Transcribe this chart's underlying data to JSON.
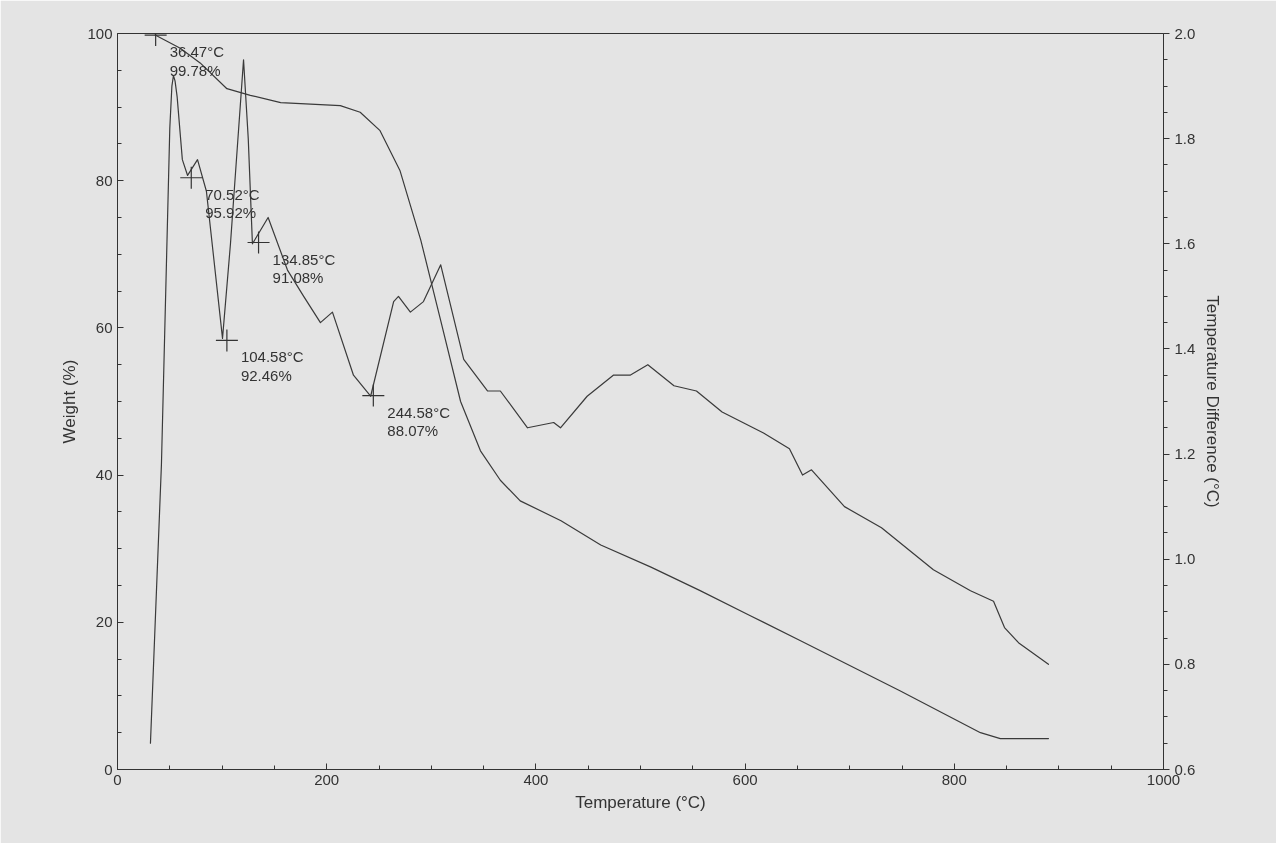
{
  "chart_data": {
    "type": "line",
    "xlabel": "Temperature (°C)",
    "ylabel": "Weight (%)",
    "y2label": "Temperature Difference (°C)",
    "xlim": [
      0,
      1000
    ],
    "xticks": [
      0,
      {
        "value": 50,
        "label": null
      },
      {
        "value": 100,
        "label": null
      },
      {
        "value": 150,
        "label": null
      },
      200,
      {
        "value": 250,
        "label": null
      },
      {
        "value": 300,
        "label": null
      },
      {
        "value": 350,
        "label": null
      },
      400,
      {
        "value": 450,
        "label": null
      },
      {
        "value": 500,
        "label": null
      },
      {
        "value": 550,
        "label": null
      },
      600,
      {
        "value": 650,
        "label": null
      },
      {
        "value": 700,
        "label": null
      },
      {
        "value": 750,
        "label": null
      },
      800,
      {
        "value": 850,
        "label": null
      },
      {
        "value": 900,
        "label": null
      },
      {
        "value": 950,
        "label": null
      },
      1000
    ],
    "ylim": [
      0,
      100
    ],
    "yticks": [
      0,
      {
        "value": 5,
        "label": null
      },
      {
        "value": 10,
        "label": null
      },
      {
        "value": 15,
        "label": null
      },
      20,
      {
        "value": 25,
        "label": null
      },
      {
        "value": 30,
        "label": null
      },
      {
        "value": 35,
        "label": null
      },
      40,
      {
        "value": 45,
        "label": null
      },
      {
        "value": 50,
        "label": null
      },
      {
        "value": 55,
        "label": null
      },
      60,
      {
        "value": 65,
        "label": null
      },
      {
        "value": 70,
        "label": null
      },
      {
        "value": 75,
        "label": null
      },
      80,
      {
        "value": 85,
        "label": null
      },
      {
        "value": 90,
        "label": null
      },
      {
        "value": 95,
        "label": null
      },
      100
    ],
    "y2lim": [
      0.6,
      2.0
    ],
    "y2ticks": [
      {
        "value": 0.6,
        "label": "0.6"
      },
      {
        "value": 0.65,
        "label": null
      },
      {
        "value": 0.7,
        "label": null
      },
      {
        "value": 0.75,
        "label": null
      },
      {
        "value": 0.8,
        "label": "0.8"
      },
      {
        "value": 0.85,
        "label": null
      },
      {
        "value": 0.9,
        "label": null
      },
      {
        "value": 0.95,
        "label": null
      },
      {
        "value": 1.0,
        "label": "1.0"
      },
      {
        "value": 1.05,
        "label": null
      },
      {
        "value": 1.1,
        "label": null
      },
      {
        "value": 1.15,
        "label": null
      },
      {
        "value": 1.2,
        "label": "1.2"
      },
      {
        "value": 1.25,
        "label": null
      },
      {
        "value": 1.3,
        "label": null
      },
      {
        "value": 1.35,
        "label": null
      },
      {
        "value": 1.4,
        "label": "1.4"
      },
      {
        "value": 1.45,
        "label": null
      },
      {
        "value": 1.5,
        "label": null
      },
      {
        "value": 1.55,
        "label": null
      },
      {
        "value": 1.6,
        "label": "1.6"
      },
      {
        "value": 1.65,
        "label": null
      },
      {
        "value": 1.7,
        "label": null
      },
      {
        "value": 1.75,
        "label": null
      },
      {
        "value": 1.8,
        "label": "1.8"
      },
      {
        "value": 1.85,
        "label": null
      },
      {
        "value": 1.9,
        "label": null
      },
      {
        "value": 1.95,
        "label": null
      },
      {
        "value": 2.0,
        "label": "2.0"
      }
    ],
    "grid": false,
    "marker": "none",
    "line_style": "solid",
    "series": [
      {
        "color": "#3a3a3a",
        "x": [
          36,
          60,
          79,
          104.6,
          127,
          156,
          213,
          232,
          251,
          270,
          290,
          309,
          328,
          347,
          366,
          385,
          424,
          462,
          510,
          557,
          605,
          653,
          748,
          825,
          844,
          890
        ],
        "values": [
          99.8,
          98.0,
          96.0,
          92.5,
          91.6,
          90.6,
          90.2,
          89.3,
          86.8,
          81.4,
          71.9,
          61.0,
          50.0,
          43.3,
          39.3,
          36.5,
          33.8,
          30.5,
          27.5,
          24.3,
          20.9,
          17.5,
          10.7,
          5.0,
          4.2,
          4.2
        ]
      },
      {
        "color": "#3a3a3a",
        "axis": "y2",
        "x": [
          31.5,
          42,
          50,
          52,
          53.5,
          55,
          57,
          62,
          67,
          76.5,
          85,
          100.4,
          108,
          120.5,
          125,
          129,
          144,
          162.5,
          178,
          194,
          205.5,
          225.6,
          242,
          264,
          268.6,
          280,
          292.5,
          309,
          331,
          353.7,
          366,
          392,
          417,
          423.5,
          449,
          474,
          490,
          507,
          532,
          553.5,
          578,
          617.6,
          642.4,
          654.9,
          663.5,
          695,
          730.4,
          780,
          815.5,
          837.5,
          848,
          862,
          890
        ],
        "values": [
          0.65,
          1.18,
          1.82,
          1.9,
          1.92,
          1.91,
          1.88,
          1.76,
          1.73,
          1.76,
          1.7,
          1.42,
          1.6,
          1.95,
          1.8,
          1.6,
          1.65,
          1.55,
          1.5,
          1.45,
          1.47,
          1.35,
          1.31,
          1.49,
          1.5,
          1.47,
          1.49,
          1.56,
          1.38,
          1.32,
          1.32,
          1.25,
          1.26,
          1.25,
          1.31,
          1.35,
          1.35,
          1.37,
          1.33,
          1.32,
          1.28,
          1.24,
          1.21,
          1.16,
          1.17,
          1.1,
          1.06,
          0.98,
          0.94,
          0.92,
          0.87,
          0.84,
          0.8
        ]
      }
    ],
    "annotations": [
      {
        "text": "36.47°C\n99.78%",
        "x": 36.47,
        "y": 99.78
      },
      {
        "text": "70.52°C\n95.92%",
        "x": 70.52,
        "y": 80.4
      },
      {
        "text": "104.58°C\n92.46%",
        "x": 104.58,
        "y": 58.3
      },
      {
        "text": "134.85°C\n91.08%",
        "x": 134.85,
        "y": 71.6
      },
      {
        "text": "244.58°C\n88.07%",
        "x": 244.58,
        "y": 50.8
      }
    ]
  }
}
